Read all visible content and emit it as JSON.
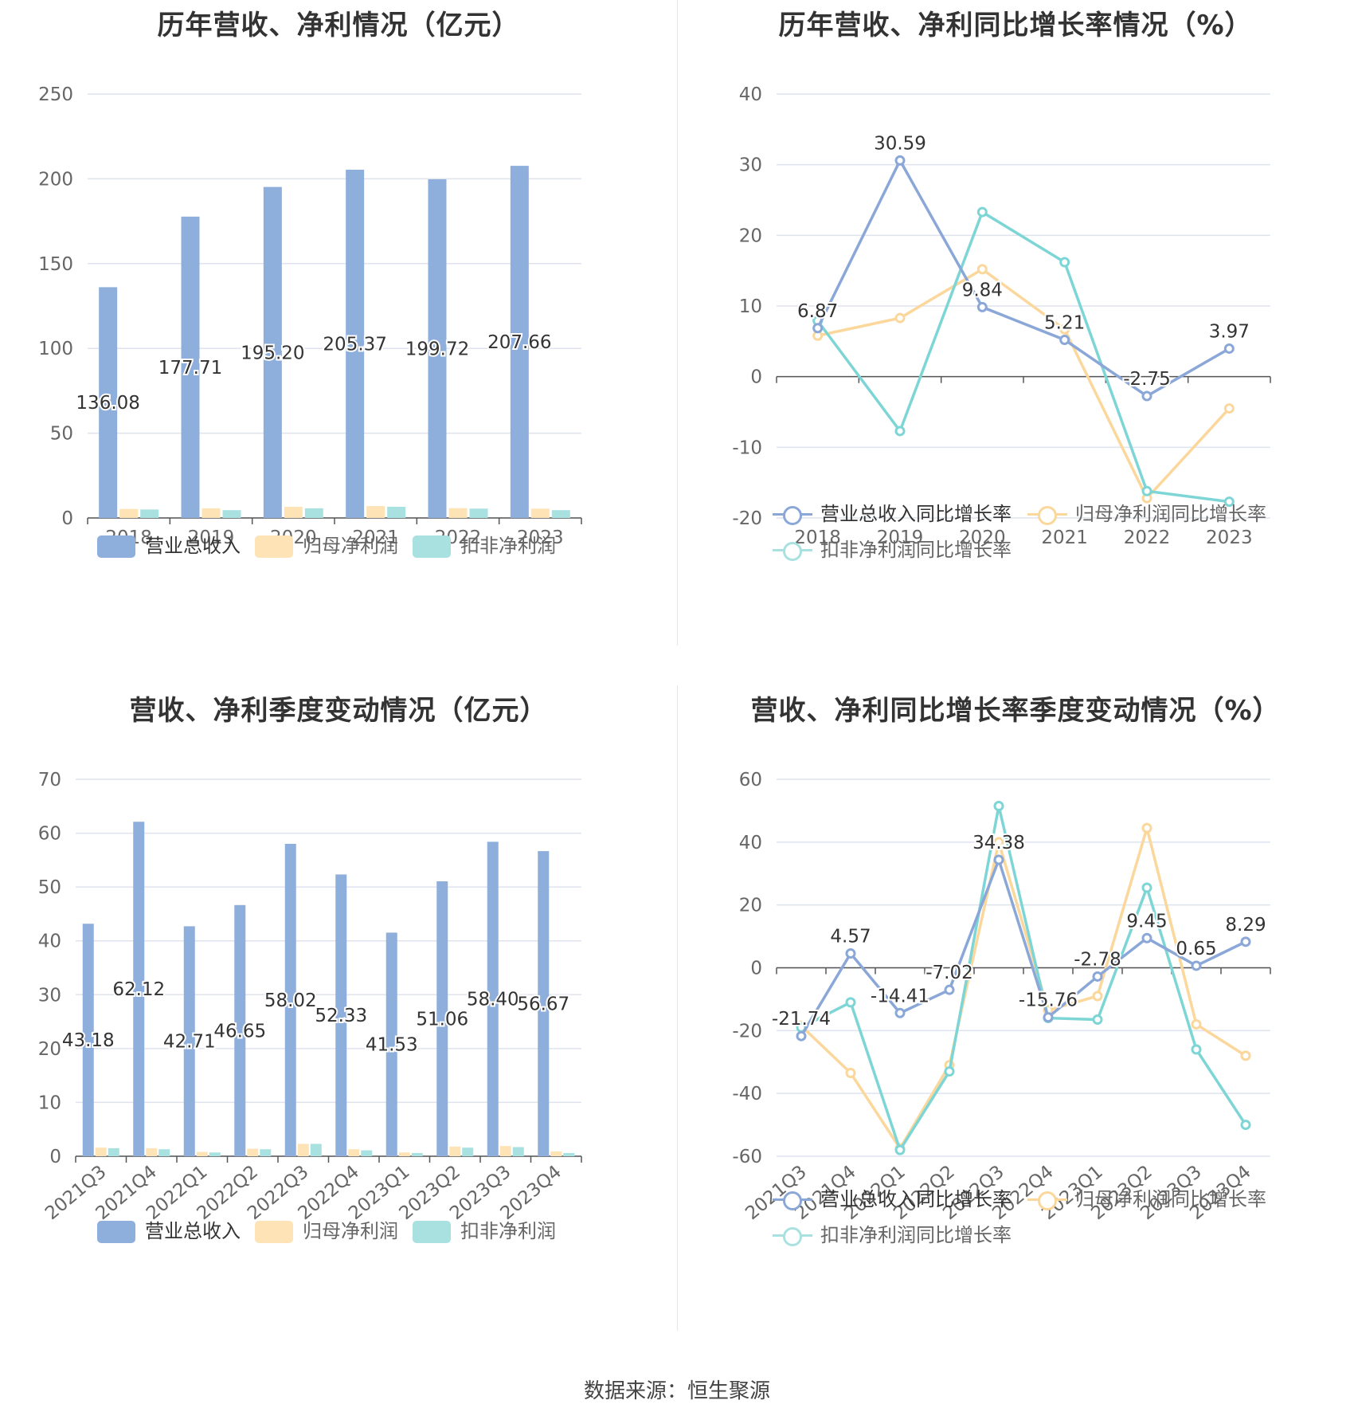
{
  "footer": "数据来源：恒生聚源",
  "legend_bar": {
    "revenue": "营业总收入",
    "net_profit": "归母净利润",
    "deducted_profit": "扣非净利润"
  },
  "legend_line": {
    "revenue": "营业总收入同比增长率",
    "net_profit": "归母净利润同比增长率",
    "deducted_profit": "扣非净利润同比增长率"
  },
  "colors": {
    "revenue": "#8eaedb",
    "net_profit": "#fde3b6",
    "deducted_profit": "#a9e1e1",
    "revenue_line": "#8aa7d8",
    "net_profit_line": "#fbd79b",
    "deducted_profit_line": "#7dd5d5"
  },
  "chart_data": [
    {
      "id": "annual_values",
      "type": "bar",
      "title": "历年营收、净利情况（亿元）",
      "categories": [
        "2018",
        "2019",
        "2020",
        "2021",
        "2022",
        "2023"
      ],
      "ylim": [
        0,
        250
      ],
      "yticks": [
        0,
        50,
        100,
        150,
        200,
        250
      ],
      "series": [
        {
          "name": "营业总收入",
          "values": [
            136.08,
            177.71,
            195.2,
            205.37,
            199.72,
            207.66
          ],
          "labels": [
            "136.08",
            "177.71",
            "195.20",
            "205.37",
            "199.72",
            "207.66"
          ]
        },
        {
          "name": "归母净利润",
          "values": [
            5.3,
            5.7,
            6.6,
            7.0,
            5.8,
            5.5
          ]
        },
        {
          "name": "扣非净利润",
          "values": [
            5.0,
            4.6,
            5.7,
            6.6,
            5.5,
            4.6
          ]
        }
      ],
      "legend": "bottom",
      "grid": true
    },
    {
      "id": "annual_growth",
      "type": "line",
      "title": "历年营收、净利同比增长率情况（%）",
      "categories": [
        "2018",
        "2019",
        "2020",
        "2021",
        "2022",
        "2023"
      ],
      "ylim": [
        -20,
        40
      ],
      "yticks": [
        -20,
        -10,
        0,
        10,
        20,
        30,
        40
      ],
      "series": [
        {
          "name": "营业总收入同比增长率",
          "values": [
            6.87,
            30.59,
            9.84,
            5.21,
            -2.75,
            3.97
          ],
          "labels": [
            "6.87",
            "30.59",
            "9.84",
            "5.21",
            "-2.75",
            "3.97"
          ]
        },
        {
          "name": "归母净利润同比增长率",
          "values": [
            5.8,
            8.3,
            15.2,
            6.7,
            -17.2,
            -4.5
          ]
        },
        {
          "name": "扣非净利润同比增长率",
          "values": [
            7.9,
            -7.7,
            23.3,
            16.2,
            -16.2,
            -17.7
          ]
        }
      ],
      "legend": "bottom",
      "grid": true
    },
    {
      "id": "quarterly_values",
      "type": "bar",
      "title": "营收、净利季度变动情况（亿元）",
      "categories": [
        "2021Q3",
        "2021Q4",
        "2022Q1",
        "2022Q2",
        "2022Q3",
        "2022Q4",
        "2023Q1",
        "2023Q2",
        "2023Q3",
        "2023Q4"
      ],
      "ylim": [
        0,
        70
      ],
      "yticks": [
        0,
        10,
        20,
        30,
        40,
        50,
        60,
        70
      ],
      "series": [
        {
          "name": "营业总收入",
          "values": [
            43.18,
            62.12,
            42.71,
            46.65,
            58.02,
            52.33,
            41.53,
            51.06,
            58.4,
            56.67
          ],
          "labels": [
            "43.18",
            "62.12",
            "42.71",
            "46.65",
            "58.02",
            "52.33",
            "41.53",
            "51.06",
            "58.40",
            "56.67"
          ]
        },
        {
          "name": "归母净利润",
          "values": [
            1.6,
            1.5,
            0.8,
            1.4,
            2.3,
            1.3,
            0.7,
            1.8,
            1.9,
            0.9
          ]
        },
        {
          "name": "扣非净利润",
          "values": [
            1.5,
            1.3,
            0.7,
            1.3,
            2.3,
            1.1,
            0.6,
            1.6,
            1.7,
            0.6
          ]
        }
      ],
      "legend": "bottom",
      "grid": true
    },
    {
      "id": "quarterly_growth",
      "type": "line",
      "title": "营收、净利同比增长率季度变动情况（%）",
      "categories": [
        "2021Q3",
        "2021Q4",
        "2022Q1",
        "2022Q2",
        "2022Q3",
        "2022Q4",
        "2023Q1",
        "2023Q2",
        "2023Q3",
        "2023Q4"
      ],
      "ylim": [
        -60,
        60
      ],
      "yticks": [
        -60,
        -40,
        -20,
        0,
        20,
        40,
        60
      ],
      "series": [
        {
          "name": "营业总收入同比增长率",
          "values": [
            -21.74,
            4.57,
            -14.41,
            -7.02,
            34.38,
            -15.76,
            -2.78,
            9.45,
            0.65,
            8.29
          ],
          "labels": [
            "-21.74",
            "4.57",
            "-14.41",
            "-7.02",
            "34.38",
            "-15.76",
            "-2.78",
            "9.45",
            "0.65",
            "8.29"
          ]
        },
        {
          "name": "归母净利润同比增长率",
          "values": [
            -18.5,
            -33.5,
            -57.5,
            -31.0,
            40.0,
            -13.5,
            -9.0,
            44.5,
            -18.0,
            -28.0
          ]
        },
        {
          "name": "扣非净利润同比增长率",
          "values": [
            -19.0,
            -11.0,
            -58.0,
            -33.0,
            51.5,
            -16.0,
            -16.5,
            25.5,
            -26.0,
            -50.0
          ]
        }
      ],
      "legend": "bottom",
      "grid": true
    }
  ]
}
